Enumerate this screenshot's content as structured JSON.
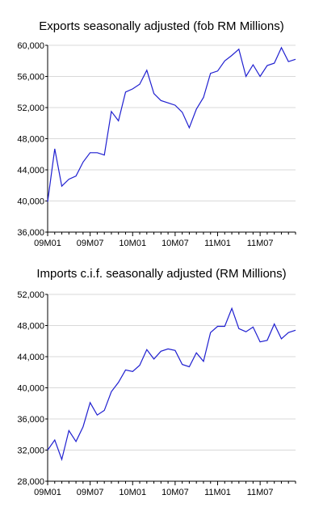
{
  "chart_data": [
    {
      "type": "line",
      "title": "Exports seasonally adjusted (fob RM Millions)",
      "xlabel": "",
      "ylabel": "",
      "ylim": [
        36000,
        60000
      ],
      "yticks": [
        36000,
        40000,
        44000,
        48000,
        52000,
        56000,
        60000
      ],
      "ytick_labels": [
        "36,000",
        "40,000",
        "44,000",
        "48,000",
        "52,000",
        "56,000",
        "60,000"
      ],
      "xticks": [
        "09M01",
        "09M07",
        "10M01",
        "10M07",
        "11M01",
        "11M07"
      ],
      "grid": true,
      "line_color": "#1f1fd0",
      "series": [
        {
          "x": [
            "09M01",
            "09M02",
            "09M03",
            "09M04",
            "09M05",
            "09M06",
            "09M07",
            "09M08",
            "09M09",
            "09M10",
            "09M11",
            "09M12",
            "10M01",
            "10M02",
            "10M03",
            "10M04",
            "10M05",
            "10M06",
            "10M07",
            "10M08",
            "10M09",
            "10M10",
            "10M11",
            "10M12",
            "11M01",
            "11M02",
            "11M03",
            "11M04",
            "11M05",
            "11M06",
            "11M07",
            "11M08",
            "11M09",
            "11M10",
            "11M11",
            "11M12"
          ],
          "values": [
            39900,
            46700,
            41900,
            42800,
            43200,
            45000,
            46200,
            46200,
            45900,
            51500,
            50300,
            54000,
            54400,
            55000,
            56800,
            53800,
            52900,
            52600,
            52300,
            51400,
            49400,
            51800,
            53300,
            56400,
            56700,
            58000,
            58700,
            59500,
            56000,
            57500,
            56000,
            57400,
            57700,
            59700,
            57900,
            58200
          ]
        }
      ]
    },
    {
      "type": "line",
      "title": "Imports c.i.f. seasonally adjusted (RM Millions)",
      "xlabel": "",
      "ylabel": "",
      "ylim": [
        28000,
        52000
      ],
      "yticks": [
        28000,
        32000,
        36000,
        40000,
        44000,
        48000,
        52000
      ],
      "ytick_labels": [
        "28,000",
        "32,000",
        "36,000",
        "40,000",
        "44,000",
        "48,000",
        "52,000"
      ],
      "xticks": [
        "09M01",
        "09M07",
        "10M01",
        "10M07",
        "11M01",
        "11M07"
      ],
      "grid": true,
      "line_color": "#1f1fd0",
      "series": [
        {
          "x": [
            "09M01",
            "09M02",
            "09M03",
            "09M04",
            "09M05",
            "09M06",
            "09M07",
            "09M08",
            "09M09",
            "09M10",
            "09M11",
            "09M12",
            "10M01",
            "10M02",
            "10M03",
            "10M04",
            "10M05",
            "10M06",
            "10M07",
            "10M08",
            "10M09",
            "10M10",
            "10M11",
            "10M12",
            "11M01",
            "11M02",
            "11M03",
            "11M04",
            "11M05",
            "11M06",
            "11M07",
            "11M08",
            "11M09",
            "11M10",
            "11M11",
            "11M12"
          ],
          "values": [
            32000,
            33300,
            30800,
            34500,
            33100,
            35000,
            38100,
            36500,
            37100,
            39500,
            40700,
            42300,
            42100,
            42900,
            44900,
            43700,
            44700,
            45000,
            44800,
            43000,
            42700,
            44500,
            43400,
            47100,
            47900,
            47900,
            50200,
            47600,
            47200,
            47800,
            45900,
            46100,
            48200,
            46300,
            47100,
            47400
          ]
        }
      ]
    }
  ]
}
